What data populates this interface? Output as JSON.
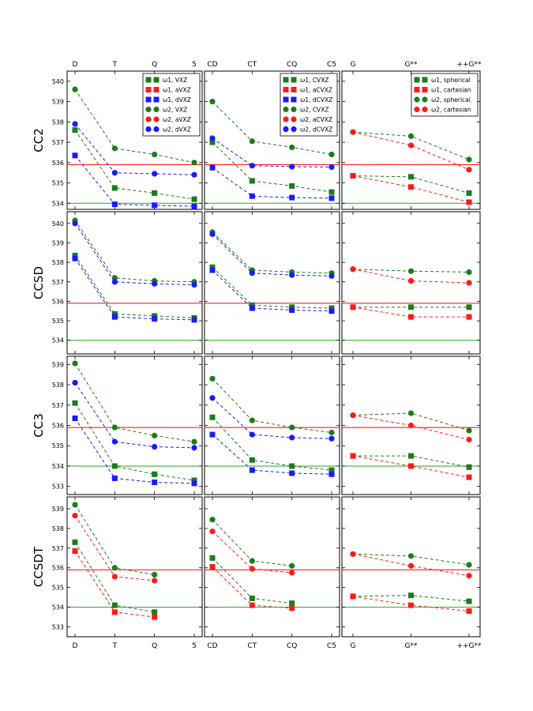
{
  "figure": {
    "row_labels": [
      "CC2",
      "CCSD",
      "CC3",
      "CCSDT"
    ],
    "column_categories": [
      [
        "D",
        "T",
        "Q",
        "5"
      ],
      [
        "CD",
        "CT",
        "CQ",
        "C5"
      ],
      [
        "G",
        "G**",
        "++G**"
      ]
    ]
  },
  "colors": {
    "green": "#1a7d1a",
    "red": "#ff1a1a",
    "blue": "#1a1aff",
    "ref_red": "#ff0000",
    "ref_green": "#22aa22"
  },
  "chart_data": [
    {
      "type": "line",
      "row": "CC2",
      "col": 0,
      "categories": [
        "D",
        "T",
        "Q",
        "5"
      ],
      "ylim": [
        533.7,
        540.5
      ],
      "yticks": [
        534,
        535,
        536,
        537,
        538,
        539,
        540
      ],
      "legend_position": "top-right",
      "reference_lines": [
        {
          "y": 535.9,
          "color": "red"
        },
        {
          "y": 534.0,
          "color": "green"
        }
      ],
      "series": [
        {
          "name": "ω1, VXZ",
          "marker": "square",
          "color": "green",
          "values": [
            537.6,
            534.75,
            534.5,
            534.2
          ]
        },
        {
          "name": "ω1, aVXZ",
          "marker": "square",
          "color": "red",
          "values": [
            null,
            null,
            null,
            null
          ]
        },
        {
          "name": "ω1, dVXZ",
          "marker": "square",
          "color": "blue",
          "values": [
            536.35,
            533.95,
            533.9,
            533.85
          ]
        },
        {
          "name": "ω2, VXZ",
          "marker": "circle",
          "color": "green",
          "values": [
            539.6,
            536.7,
            536.4,
            536.0
          ]
        },
        {
          "name": "ω2, aVXZ",
          "marker": "circle",
          "color": "red",
          "values": [
            null,
            null,
            null,
            null
          ]
        },
        {
          "name": "ω2, dVXZ",
          "marker": "circle",
          "color": "blue",
          "values": [
            537.9,
            535.5,
            535.45,
            535.4
          ]
        }
      ]
    },
    {
      "type": "line",
      "row": "CC2",
      "col": 1,
      "categories": [
        "CD",
        "CT",
        "CQ",
        "C5"
      ],
      "ylim": [
        533.7,
        540.5
      ],
      "legend_position": "top-right",
      "reference_lines": [
        {
          "y": 535.9,
          "color": "red"
        },
        {
          "y": 534.0,
          "color": "green"
        }
      ],
      "series": [
        {
          "name": "ω1, CVXZ",
          "marker": "square",
          "color": "green",
          "values": [
            537.0,
            535.1,
            534.85,
            534.55
          ]
        },
        {
          "name": "ω1, aCVXZ",
          "marker": "square",
          "color": "red",
          "values": [
            null,
            null,
            null,
            null
          ]
        },
        {
          "name": "ω1, dCVXZ",
          "marker": "square",
          "color": "blue",
          "values": [
            535.75,
            534.35,
            534.28,
            534.25
          ]
        },
        {
          "name": "ω2, CVXZ",
          "marker": "circle",
          "color": "green",
          "values": [
            539.0,
            537.05,
            536.75,
            536.4
          ]
        },
        {
          "name": "ω2, aCVXZ",
          "marker": "circle",
          "color": "red",
          "values": [
            null,
            null,
            null,
            null
          ]
        },
        {
          "name": "ω2, dCVXZ",
          "marker": "circle",
          "color": "blue",
          "values": [
            537.2,
            535.85,
            535.8,
            535.78
          ]
        }
      ]
    },
    {
      "type": "line",
      "row": "CC2",
      "col": 2,
      "categories": [
        "G",
        "G**",
        "++G**"
      ],
      "ylim": [
        533.7,
        540.5
      ],
      "legend_position": "top-right",
      "reference_lines": [
        {
          "y": 535.9,
          "color": "red"
        },
        {
          "y": 534.0,
          "color": "green"
        }
      ],
      "series": [
        {
          "name": "ω1, spherical",
          "marker": "square",
          "color": "green",
          "values": [
            535.35,
            535.3,
            534.5
          ]
        },
        {
          "name": "ω1, cartesian",
          "marker": "square",
          "color": "red",
          "values": [
            535.35,
            534.8,
            534.05
          ]
        },
        {
          "name": "ω2, spherical",
          "marker": "circle",
          "color": "green",
          "values": [
            537.5,
            537.3,
            536.15
          ]
        },
        {
          "name": "ω2, cartesian",
          "marker": "circle",
          "color": "red",
          "values": [
            537.5,
            536.85,
            535.65
          ]
        }
      ]
    },
    {
      "type": "line",
      "row": "CCSD",
      "col": 0,
      "categories": [
        "D",
        "T",
        "Q",
        "5"
      ],
      "ylim": [
        533.3,
        540.6
      ],
      "yticks": [
        534,
        535,
        536,
        537,
        538,
        539,
        540
      ],
      "reference_lines": [
        {
          "y": 535.9,
          "color": "red"
        },
        {
          "y": 534.0,
          "color": "green"
        }
      ],
      "series": [
        {
          "name": "ω1, VXZ",
          "marker": "square",
          "color": "green",
          "values": [
            538.35,
            535.35,
            535.25,
            535.15
          ]
        },
        {
          "name": "ω1, dVXZ",
          "marker": "square",
          "color": "blue",
          "values": [
            538.2,
            535.2,
            535.1,
            535.05
          ]
        },
        {
          "name": "ω2, VXZ",
          "marker": "circle",
          "color": "green",
          "values": [
            540.15,
            537.2,
            537.05,
            537.0
          ]
        },
        {
          "name": "ω2, dVXZ",
          "marker": "circle",
          "color": "blue",
          "values": [
            540.0,
            537.0,
            536.9,
            536.85
          ]
        }
      ]
    },
    {
      "type": "line",
      "row": "CCSD",
      "col": 1,
      "categories": [
        "CD",
        "CT",
        "CQ",
        "C5"
      ],
      "ylim": [
        533.3,
        540.6
      ],
      "reference_lines": [
        {
          "y": 535.9,
          "color": "red"
        },
        {
          "y": 534.0,
          "color": "green"
        }
      ],
      "series": [
        {
          "name": "ω1, CVXZ",
          "marker": "square",
          "color": "green",
          "values": [
            537.75,
            535.8,
            535.7,
            535.65
          ]
        },
        {
          "name": "ω1, dCVXZ",
          "marker": "square",
          "color": "blue",
          "values": [
            537.6,
            535.65,
            535.55,
            535.5
          ]
        },
        {
          "name": "ω2, CVXZ",
          "marker": "circle",
          "color": "green",
          "values": [
            539.55,
            537.6,
            537.5,
            537.45
          ]
        },
        {
          "name": "ω2, dCVXZ",
          "marker": "circle",
          "color": "blue",
          "values": [
            539.45,
            537.45,
            537.35,
            537.3
          ]
        }
      ]
    },
    {
      "type": "line",
      "row": "CCSD",
      "col": 2,
      "categories": [
        "G",
        "G**",
        "++G**"
      ],
      "ylim": [
        533.3,
        540.6
      ],
      "reference_lines": [
        {
          "y": 535.9,
          "color": "red"
        },
        {
          "y": 534.0,
          "color": "green"
        }
      ],
      "series": [
        {
          "name": "ω1, spherical",
          "marker": "square",
          "color": "green",
          "values": [
            535.7,
            535.7,
            535.7
          ]
        },
        {
          "name": "ω1, cartesian",
          "marker": "square",
          "color": "red",
          "values": [
            535.7,
            535.2,
            535.2
          ]
        },
        {
          "name": "ω2, spherical",
          "marker": "circle",
          "color": "green",
          "values": [
            537.65,
            537.55,
            537.5
          ]
        },
        {
          "name": "ω2, cartesian",
          "marker": "circle",
          "color": "red",
          "values": [
            537.65,
            537.05,
            536.95
          ]
        }
      ]
    },
    {
      "type": "line",
      "row": "CC3",
      "col": 0,
      "categories": [
        "D",
        "T",
        "Q",
        "5"
      ],
      "ylim": [
        532.6,
        539.4
      ],
      "yticks": [
        533,
        534,
        535,
        536,
        537,
        538,
        539
      ],
      "reference_lines": [
        {
          "y": 535.9,
          "color": "red"
        },
        {
          "y": 534.0,
          "color": "green"
        }
      ],
      "series": [
        {
          "name": "ω1, VXZ",
          "marker": "square",
          "color": "green",
          "values": [
            537.1,
            534.0,
            533.6,
            533.3
          ]
        },
        {
          "name": "ω1, dVXZ",
          "marker": "square",
          "color": "blue",
          "values": [
            536.35,
            533.4,
            533.2,
            533.15
          ]
        },
        {
          "name": "ω2, VXZ",
          "marker": "circle",
          "color": "green",
          "values": [
            539.05,
            535.9,
            535.5,
            535.2
          ]
        },
        {
          "name": "ω2, dVXZ",
          "marker": "circle",
          "color": "blue",
          "values": [
            538.1,
            535.2,
            534.95,
            534.9
          ]
        }
      ]
    },
    {
      "type": "line",
      "row": "CC3",
      "col": 1,
      "categories": [
        "CD",
        "CT",
        "CQ",
        "C5"
      ],
      "ylim": [
        532.6,
        539.4
      ],
      "reference_lines": [
        {
          "y": 535.9,
          "color": "red"
        },
        {
          "y": 534.0,
          "color": "green"
        }
      ],
      "series": [
        {
          "name": "ω1, CVXZ",
          "marker": "square",
          "color": "green",
          "values": [
            536.4,
            534.3,
            534.0,
            533.8
          ]
        },
        {
          "name": "ω1, dCVXZ",
          "marker": "square",
          "color": "blue",
          "values": [
            535.55,
            533.8,
            533.65,
            533.6
          ]
        },
        {
          "name": "ω2, CVXZ",
          "marker": "circle",
          "color": "green",
          "values": [
            538.3,
            536.25,
            535.9,
            535.65
          ]
        },
        {
          "name": "ω2, dCVXZ",
          "marker": "circle",
          "color": "blue",
          "values": [
            537.35,
            535.55,
            535.4,
            535.35
          ]
        }
      ]
    },
    {
      "type": "line",
      "row": "CC3",
      "col": 2,
      "categories": [
        "G",
        "G**",
        "++G**"
      ],
      "ylim": [
        532.6,
        539.4
      ],
      "reference_lines": [
        {
          "y": 535.9,
          "color": "red"
        },
        {
          "y": 534.0,
          "color": "green"
        }
      ],
      "series": [
        {
          "name": "ω1, spherical",
          "marker": "square",
          "color": "green",
          "values": [
            534.5,
            534.5,
            533.95
          ]
        },
        {
          "name": "ω1, cartesian",
          "marker": "square",
          "color": "red",
          "values": [
            534.5,
            534.0,
            533.45
          ]
        },
        {
          "name": "ω2, spherical",
          "marker": "circle",
          "color": "green",
          "values": [
            536.5,
            536.6,
            535.75
          ]
        },
        {
          "name": "ω2, cartesian",
          "marker": "circle",
          "color": "red",
          "values": [
            536.5,
            536.0,
            535.3
          ]
        }
      ]
    },
    {
      "type": "line",
      "row": "CCSDT",
      "col": 0,
      "categories": [
        "D",
        "T",
        "Q",
        "5"
      ],
      "ylim": [
        532.5,
        539.6
      ],
      "yticks": [
        533,
        534,
        535,
        536,
        537,
        538,
        539
      ],
      "reference_lines": [
        {
          "y": 535.9,
          "color": "red"
        },
        {
          "y": 534.0,
          "color": "green"
        }
      ],
      "series": [
        {
          "name": "ω1, VXZ",
          "marker": "square",
          "color": "green",
          "values": [
            537.3,
            534.1,
            533.75,
            null
          ]
        },
        {
          "name": "ω1, aVXZ",
          "marker": "square",
          "color": "red",
          "values": [
            536.85,
            533.75,
            533.5,
            null
          ]
        },
        {
          "name": "ω2, VXZ",
          "marker": "circle",
          "color": "green",
          "values": [
            539.2,
            536.0,
            535.65,
            null
          ]
        },
        {
          "name": "ω2, aVXZ",
          "marker": "circle",
          "color": "red",
          "values": [
            538.65,
            535.55,
            535.35,
            null
          ]
        }
      ]
    },
    {
      "type": "line",
      "row": "CCSDT",
      "col": 1,
      "categories": [
        "CD",
        "CT",
        "CQ",
        "C5"
      ],
      "ylim": [
        532.5,
        539.6
      ],
      "reference_lines": [
        {
          "y": 535.9,
          "color": "red"
        },
        {
          "y": 534.0,
          "color": "green"
        }
      ],
      "series": [
        {
          "name": "ω1, CVXZ",
          "marker": "square",
          "color": "green",
          "values": [
            536.5,
            534.45,
            534.2,
            null
          ]
        },
        {
          "name": "ω1, aCVXZ",
          "marker": "square",
          "color": "red",
          "values": [
            536.05,
            534.1,
            533.95,
            null
          ]
        },
        {
          "name": "ω2, CVXZ",
          "marker": "circle",
          "color": "green",
          "values": [
            538.45,
            536.35,
            536.1,
            null
          ]
        },
        {
          "name": "ω2, aCVXZ",
          "marker": "circle",
          "color": "red",
          "values": [
            537.85,
            535.95,
            535.75,
            null
          ]
        }
      ]
    },
    {
      "type": "line",
      "row": "CCSDT",
      "col": 2,
      "categories": [
        "G",
        "G**",
        "++G**"
      ],
      "ylim": [
        532.5,
        539.6
      ],
      "reference_lines": [
        {
          "y": 535.9,
          "color": "red"
        },
        {
          "y": 534.0,
          "color": "green"
        }
      ],
      "series": [
        {
          "name": "ω1, spherical",
          "marker": "square",
          "color": "green",
          "values": [
            534.55,
            534.6,
            534.3
          ]
        },
        {
          "name": "ω1, cartesian",
          "marker": "square",
          "color": "red",
          "values": [
            534.55,
            534.1,
            533.8
          ]
        },
        {
          "name": "ω2, spherical",
          "marker": "circle",
          "color": "green",
          "values": [
            536.7,
            536.6,
            536.15
          ]
        },
        {
          "name": "ω2, cartesian",
          "marker": "circle",
          "color": "red",
          "values": [
            536.7,
            536.1,
            535.6
          ]
        }
      ]
    }
  ]
}
